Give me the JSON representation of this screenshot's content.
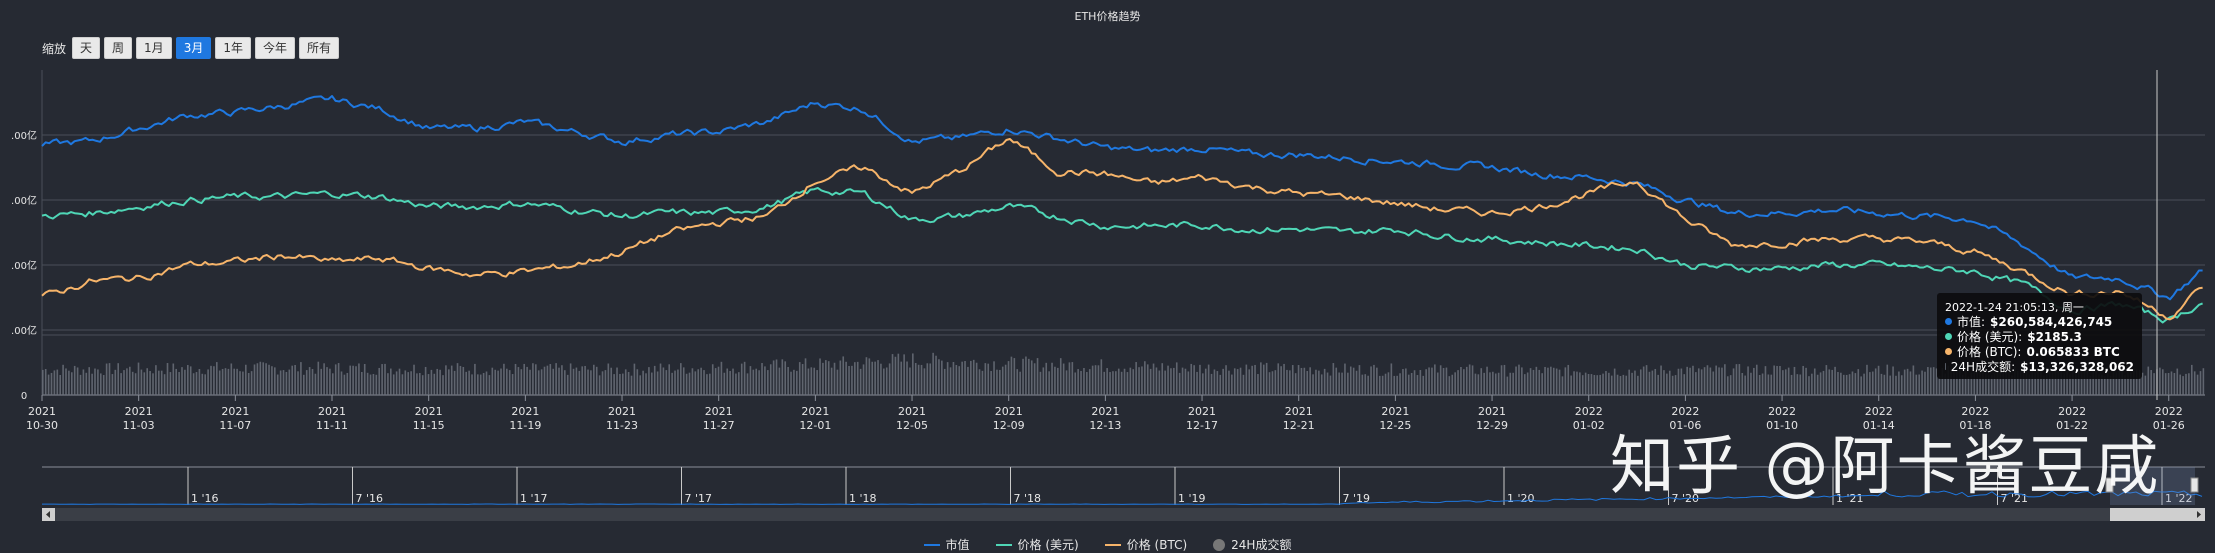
{
  "title": "ETH价格趋势",
  "zoom": {
    "label": "缩放",
    "buttons": [
      "天",
      "周",
      "1月",
      "3月",
      "1年",
      "今年",
      "所有"
    ],
    "active": "3月"
  },
  "watermark": "知乎 @阿卡酱豆咸",
  "colors": {
    "market_cap": "#1f78e0",
    "price_usd": "#4fd6b6",
    "price_btc": "#f6b46a",
    "volume": "#8a8f99"
  },
  "tooltip": {
    "date": "2022-1-24 21:05:13, 周一",
    "rows": [
      {
        "label": "市值:",
        "value": "$260,584,426,745",
        "color": "#1f78e0"
      },
      {
        "label": "价格 (美元):",
        "value": "$2185.3",
        "color": "#4fd6b6"
      },
      {
        "label": "价格 (BTC):",
        "value": "0.065833 BTC",
        "color": "#f6b46a"
      },
      {
        "label": "24H成交额:",
        "value": "$13,326,328,062",
        "color": "#555a63"
      }
    ]
  },
  "chart_data": {
    "type": "line",
    "title": "ETH价格趋势",
    "y_tick_labels": [
      ".00亿",
      ".00亿",
      ".00亿",
      ".00亿",
      "0"
    ],
    "x_tick_labels": [
      {
        "year": "2021",
        "day": "10-30"
      },
      {
        "year": "2021",
        "day": "11-03"
      },
      {
        "year": "2021",
        "day": "11-07"
      },
      {
        "year": "2021",
        "day": "11-11"
      },
      {
        "year": "2021",
        "day": "11-15"
      },
      {
        "year": "2021",
        "day": "11-19"
      },
      {
        "year": "2021",
        "day": "11-23"
      },
      {
        "year": "2021",
        "day": "11-27"
      },
      {
        "year": "2021",
        "day": "12-01"
      },
      {
        "year": "2021",
        "day": "12-05"
      },
      {
        "year": "2021",
        "day": "12-09"
      },
      {
        "year": "2021",
        "day": "12-13"
      },
      {
        "year": "2021",
        "day": "12-17"
      },
      {
        "year": "2021",
        "day": "12-21"
      },
      {
        "year": "2021",
        "day": "12-25"
      },
      {
        "year": "2021",
        "day": "12-29"
      },
      {
        "year": "2022",
        "day": "01-02"
      },
      {
        "year": "2022",
        "day": "01-06"
      },
      {
        "year": "2022",
        "day": "01-10"
      },
      {
        "year": "2022",
        "day": "01-14"
      },
      {
        "year": "2022",
        "day": "01-18"
      },
      {
        "year": "2022",
        "day": "01-22"
      },
      {
        "year": "2022",
        "day": "01-26"
      }
    ],
    "x_days": [
      0,
      4,
      8,
      12,
      16,
      20,
      24,
      28,
      32,
      36,
      40,
      44,
      48,
      52,
      56,
      60,
      64,
      68,
      72,
      76,
      80,
      84,
      88
    ],
    "ylim": [
      0,
      5
    ],
    "series": [
      {
        "name": "市值",
        "color": "#1f78e0",
        "x": [
          0,
          2,
          4,
          6,
          8,
          10,
          12,
          14,
          16,
          18,
          20,
          22,
          24,
          26,
          28,
          30,
          32,
          34,
          36,
          38,
          40,
          42,
          44,
          46,
          48,
          50,
          52,
          54,
          56,
          58,
          60,
          62,
          64,
          66,
          68,
          70,
          72,
          74,
          76,
          78,
          80,
          82,
          84,
          86,
          88,
          89.5
        ],
        "y": [
          3.85,
          3.9,
          4.1,
          4.3,
          4.35,
          4.45,
          4.55,
          4.4,
          4.1,
          4.1,
          4.2,
          4.05,
          3.9,
          4.0,
          4.05,
          4.2,
          4.5,
          4.4,
          3.9,
          3.95,
          4.1,
          3.95,
          3.8,
          3.75,
          3.8,
          3.7,
          3.7,
          3.65,
          3.6,
          3.55,
          3.5,
          3.4,
          3.35,
          3.25,
          3.0,
          2.8,
          2.8,
          2.85,
          2.8,
          2.75,
          2.7,
          2.3,
          1.8,
          1.8,
          1.5,
          1.95
        ]
      },
      {
        "name": "价格 (美元)",
        "color": "#4fd6b6",
        "x": [
          0,
          2,
          4,
          6,
          8,
          10,
          12,
          14,
          16,
          18,
          20,
          22,
          24,
          26,
          28,
          30,
          32,
          34,
          36,
          38,
          40,
          42,
          44,
          46,
          48,
          50,
          52,
          54,
          56,
          58,
          60,
          62,
          64,
          66,
          68,
          70,
          72,
          74,
          76,
          78,
          80,
          82,
          84,
          86,
          88,
          89.5
        ],
        "y": [
          2.75,
          2.8,
          2.9,
          3.0,
          3.05,
          3.05,
          3.1,
          3.05,
          2.9,
          2.9,
          2.95,
          2.85,
          2.75,
          2.8,
          2.8,
          2.9,
          3.15,
          3.1,
          2.7,
          2.75,
          2.9,
          2.75,
          2.6,
          2.6,
          2.62,
          2.55,
          2.55,
          2.5,
          2.55,
          2.45,
          2.4,
          2.35,
          2.3,
          2.25,
          2.0,
          1.95,
          1.95,
          2.0,
          2.0,
          1.95,
          1.9,
          1.7,
          1.3,
          1.4,
          1.15,
          1.45
        ]
      },
      {
        "name": "价格 (BTC)",
        "color": "#f6b46a",
        "x": [
          0,
          2,
          4,
          6,
          8,
          10,
          12,
          14,
          16,
          18,
          20,
          22,
          24,
          26,
          28,
          30,
          32,
          34,
          36,
          38,
          40,
          42,
          44,
          46,
          48,
          50,
          52,
          54,
          56,
          58,
          60,
          62,
          64,
          66,
          68,
          70,
          72,
          74,
          76,
          78,
          80,
          82,
          84,
          86,
          88,
          89.5
        ],
        "y": [
          1.5,
          1.75,
          1.8,
          2.0,
          2.05,
          2.15,
          2.05,
          2.1,
          1.95,
          1.85,
          1.9,
          2.0,
          2.2,
          2.5,
          2.65,
          2.75,
          3.3,
          3.5,
          3.1,
          3.45,
          3.95,
          3.45,
          3.4,
          3.25,
          3.35,
          3.2,
          3.1,
          3.05,
          2.95,
          2.85,
          2.8,
          2.9,
          3.1,
          3.3,
          2.7,
          2.3,
          2.35,
          2.4,
          2.4,
          2.35,
          2.2,
          1.9,
          1.55,
          1.6,
          1.2,
          1.7
        ]
      }
    ],
    "volume": {
      "name": "24H成交额",
      "x": [
        0,
        8,
        16,
        24,
        32,
        36,
        40,
        48,
        56,
        64,
        72,
        80,
        88,
        89.5
      ],
      "y": [
        0.42,
        0.45,
        0.44,
        0.42,
        0.5,
        0.58,
        0.52,
        0.45,
        0.42,
        0.4,
        0.42,
        0.4,
        0.42,
        0.4
      ]
    },
    "navigator_labels": [
      "1 '16",
      "7 '16",
      "1 '17",
      "7 '17",
      "1 '18",
      "7 '18",
      "1 '19",
      "7 '19",
      "1 '20",
      "7 '20",
      "1 '21",
      "7 '21",
      "1 '22"
    ],
    "legend": [
      "市值",
      "价格 (美元)",
      "价格 (BTC)",
      "24H成交额"
    ],
    "legend_placement": "bottom"
  }
}
